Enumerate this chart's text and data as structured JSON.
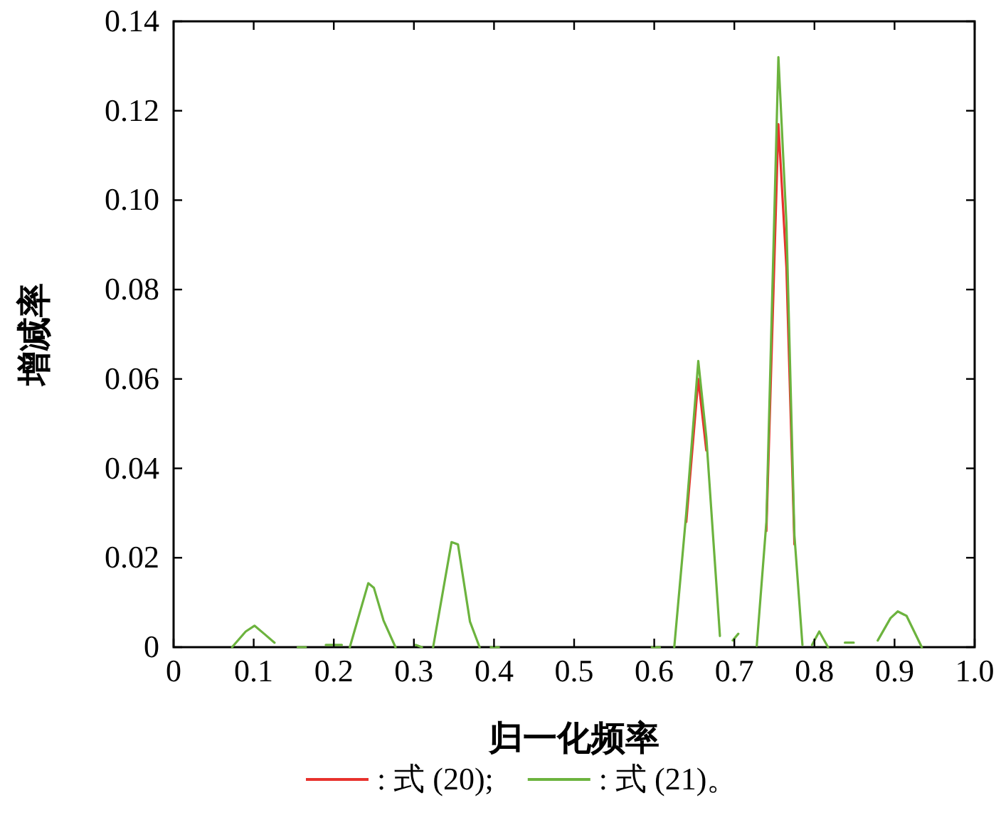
{
  "chart_data": {
    "type": "line",
    "xlabel": "归一化频率",
    "ylabel": "增减率",
    "x": [
      0.073,
      0.09,
      0.101,
      0.113,
      0.126,
      null,
      0.155,
      0.165,
      null,
      0.19,
      0.21,
      null,
      0.22,
      0.243,
      0.25,
      0.262,
      0.277,
      null,
      0.302,
      0.31,
      null,
      0.324,
      0.347,
      0.355,
      0.37,
      0.382,
      null,
      0.396,
      0.406,
      null,
      0.597,
      0.607,
      null,
      0.625,
      0.64,
      0.655,
      0.665,
      0.682,
      null,
      0.698,
      0.705,
      null,
      0.728,
      0.74,
      0.755,
      0.765,
      0.775,
      0.785,
      null,
      0.797,
      0.806,
      0.817,
      null,
      0.838,
      0.849,
      null,
      0.879,
      0.895,
      0.904,
      0.915,
      0.934
    ],
    "series": [
      {
        "name": ": 式 (20);",
        "color": "#e8322d",
        "values": [
          null,
          null,
          null,
          null,
          null,
          null,
          null,
          null,
          null,
          null,
          null,
          null,
          null,
          null,
          null,
          null,
          null,
          null,
          null,
          null,
          null,
          null,
          null,
          null,
          null,
          null,
          null,
          null,
          null,
          null,
          null,
          null,
          null,
          null,
          0.028,
          0.06,
          0.044,
          null,
          null,
          null,
          null,
          null,
          null,
          0.026,
          0.117,
          0.085,
          0.023,
          null,
          null,
          null,
          null,
          null,
          null,
          null,
          null,
          null,
          null,
          null,
          null,
          null,
          null
        ]
      },
      {
        "name": ": 式 (21)。",
        "color": "#6cb33e",
        "values": [
          0,
          0.0035,
          0.0048,
          0.003,
          0.001,
          null,
          0,
          0,
          null,
          0.0005,
          0.0005,
          null,
          0,
          0.0143,
          0.0133,
          0.006,
          0,
          null,
          0.0005,
          0,
          null,
          0,
          0.0235,
          0.023,
          0.0057,
          0,
          null,
          0,
          0,
          null,
          0,
          0,
          null,
          0,
          0.03,
          0.064,
          0.047,
          0.0025,
          null,
          0.0015,
          0.003,
          null,
          0.0003,
          0.028,
          0.132,
          0.095,
          0.025,
          0.0005,
          null,
          0.0005,
          0.0035,
          0,
          null,
          0.001,
          0.001,
          null,
          0.0015,
          0.0065,
          0.008,
          0.007,
          0
        ]
      }
    ],
    "xlim": [
      0,
      1
    ],
    "ylim": [
      0,
      0.14
    ],
    "xticks": [
      0,
      0.1,
      0.2,
      0.3,
      0.4,
      0.5,
      0.6,
      0.7,
      0.8,
      0.9,
      {
        "value": 1,
        "label": "1.0"
      }
    ],
    "yticks": [
      0,
      0.02,
      0.04,
      0.06,
      0.08,
      {
        "value": 0.1,
        "label": "0.10"
      },
      0.12,
      0.14
    ],
    "legend": "bottom",
    "line_style": "solid"
  }
}
